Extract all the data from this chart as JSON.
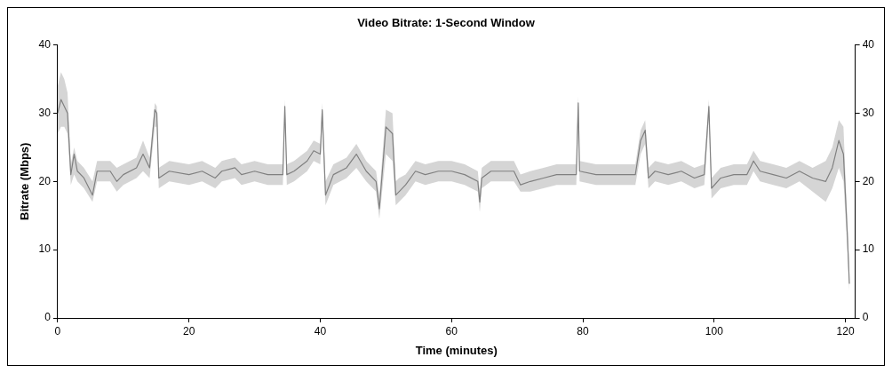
{
  "chart_data": {
    "type": "line",
    "title": "Video Bitrate: 1-Second Window",
    "xlabel": "Time (minutes)",
    "ylabel": "Bitrate (Mbps)",
    "x": [
      0,
      0.5,
      1,
      1.5,
      2,
      2.5,
      3,
      4,
      5.3,
      6,
      8,
      9,
      10,
      12,
      13,
      14,
      14.8,
      15.1,
      15.4,
      17,
      20,
      22,
      24,
      25,
      27,
      28,
      30,
      32,
      34.3,
      34.6,
      34.9,
      36,
      38,
      39,
      40,
      40.3,
      40.8,
      42,
      44,
      45.5,
      47,
      48.5,
      49,
      50,
      51,
      51.5,
      52,
      53,
      54.5,
      56,
      58,
      60,
      62,
      64,
      64.3,
      64.6,
      66,
      68,
      69.5,
      70.5,
      72,
      74,
      76,
      78,
      79,
      79.3,
      79.5,
      82,
      84,
      86,
      88,
      88.8,
      89.5,
      90,
      91,
      93,
      95,
      97,
      98.5,
      99.2,
      99.6,
      101,
      103,
      105,
      106,
      107,
      109,
      111,
      113,
      115,
      117,
      118,
      119,
      119.7,
      120.3,
      120.6
    ],
    "series": [
      {
        "color": "#808080",
        "values": [
          30,
          32,
          31,
          30,
          21,
          24,
          21.5,
          20.5,
          18,
          21.5,
          21.5,
          20,
          21,
          22,
          24,
          22,
          30.5,
          30,
          20.5,
          21.5,
          21,
          21.5,
          20.5,
          21.5,
          22,
          21,
          21.5,
          21,
          21,
          31,
          21,
          21.5,
          23,
          24.5,
          24,
          30.5,
          18,
          21,
          22,
          24,
          21.5,
          20,
          16,
          28,
          27,
          18,
          18.5,
          19.5,
          21.5,
          21,
          21.5,
          21.5,
          21,
          20,
          17,
          20.5,
          21.5,
          21.5,
          21.5,
          19.5,
          20,
          20.5,
          21,
          21,
          21,
          31.5,
          21.5,
          21,
          21,
          21,
          21,
          26,
          27.5,
          20.5,
          21.5,
          21,
          21.5,
          20.5,
          21,
          31,
          19,
          20.5,
          21,
          21,
          23,
          21.5,
          21,
          20.5,
          21.5,
          20.5,
          20,
          22,
          26,
          24,
          12,
          5
        ],
        "lower": [
          27,
          28,
          28,
          27,
          19.5,
          21,
          20,
          19,
          17,
          20,
          20,
          18.5,
          19.5,
          20.5,
          21.5,
          20.5,
          28,
          28,
          19,
          20,
          19.5,
          20,
          19,
          20,
          20.5,
          19.5,
          20,
          19.5,
          19.5,
          29,
          19.5,
          20,
          21.5,
          23,
          22.5,
          28,
          16.5,
          19.5,
          20.5,
          22,
          20,
          18.5,
          14.5,
          24,
          23,
          16.5,
          17,
          18,
          20,
          19.5,
          20,
          20,
          19.5,
          18.5,
          15.5,
          19,
          20,
          20,
          20,
          18.5,
          18.5,
          19,
          19.5,
          19.5,
          19.5,
          29,
          20,
          19.5,
          19.5,
          19.5,
          19.5,
          24,
          25.5,
          19,
          20,
          19.5,
          20,
          19,
          19.5,
          29,
          17.5,
          19,
          19.5,
          19.5,
          21.5,
          20,
          19.5,
          19,
          20,
          18.5,
          17,
          19,
          22,
          20,
          10,
          4
        ],
        "upper": [
          34,
          36,
          35,
          33,
          22.5,
          25,
          23,
          22,
          20,
          23,
          23,
          22,
          22.5,
          23.5,
          26,
          23.5,
          31.5,
          31,
          22,
          23,
          22.5,
          23,
          22,
          23,
          23.5,
          22.5,
          23,
          22.5,
          22.5,
          32,
          22.5,
          23,
          24.5,
          26,
          25.5,
          31.5,
          20,
          22.5,
          23.5,
          25.5,
          23,
          21.5,
          18,
          30.5,
          30,
          20,
          20.5,
          21,
          23,
          22.5,
          23,
          23,
          22.5,
          21.5,
          18.5,
          22,
          23,
          23,
          23,
          21,
          21.5,
          22,
          22.5,
          22.5,
          22.5,
          32.5,
          23,
          22.5,
          22.5,
          22.5,
          22.5,
          27.5,
          29,
          22,
          23,
          22.5,
          23,
          22,
          22.5,
          32,
          20.5,
          22,
          22.5,
          22.5,
          24.5,
          23,
          22.5,
          22,
          23,
          22,
          23,
          25,
          29,
          28,
          14,
          7
        ]
      }
    ],
    "xlim": [
      0,
      121.5
    ],
    "xticks": [
      0,
      20,
      40,
      60,
      80,
      100,
      120
    ],
    "ylim": [
      0,
      40
    ],
    "yticks": [
      0,
      10,
      20,
      30,
      40
    ],
    "y2lim": [
      0,
      40
    ],
    "y2ticks": [
      0,
      10,
      20,
      30,
      40
    ],
    "grid": false,
    "legend": false,
    "line_style": "solid",
    "marker": "none"
  }
}
